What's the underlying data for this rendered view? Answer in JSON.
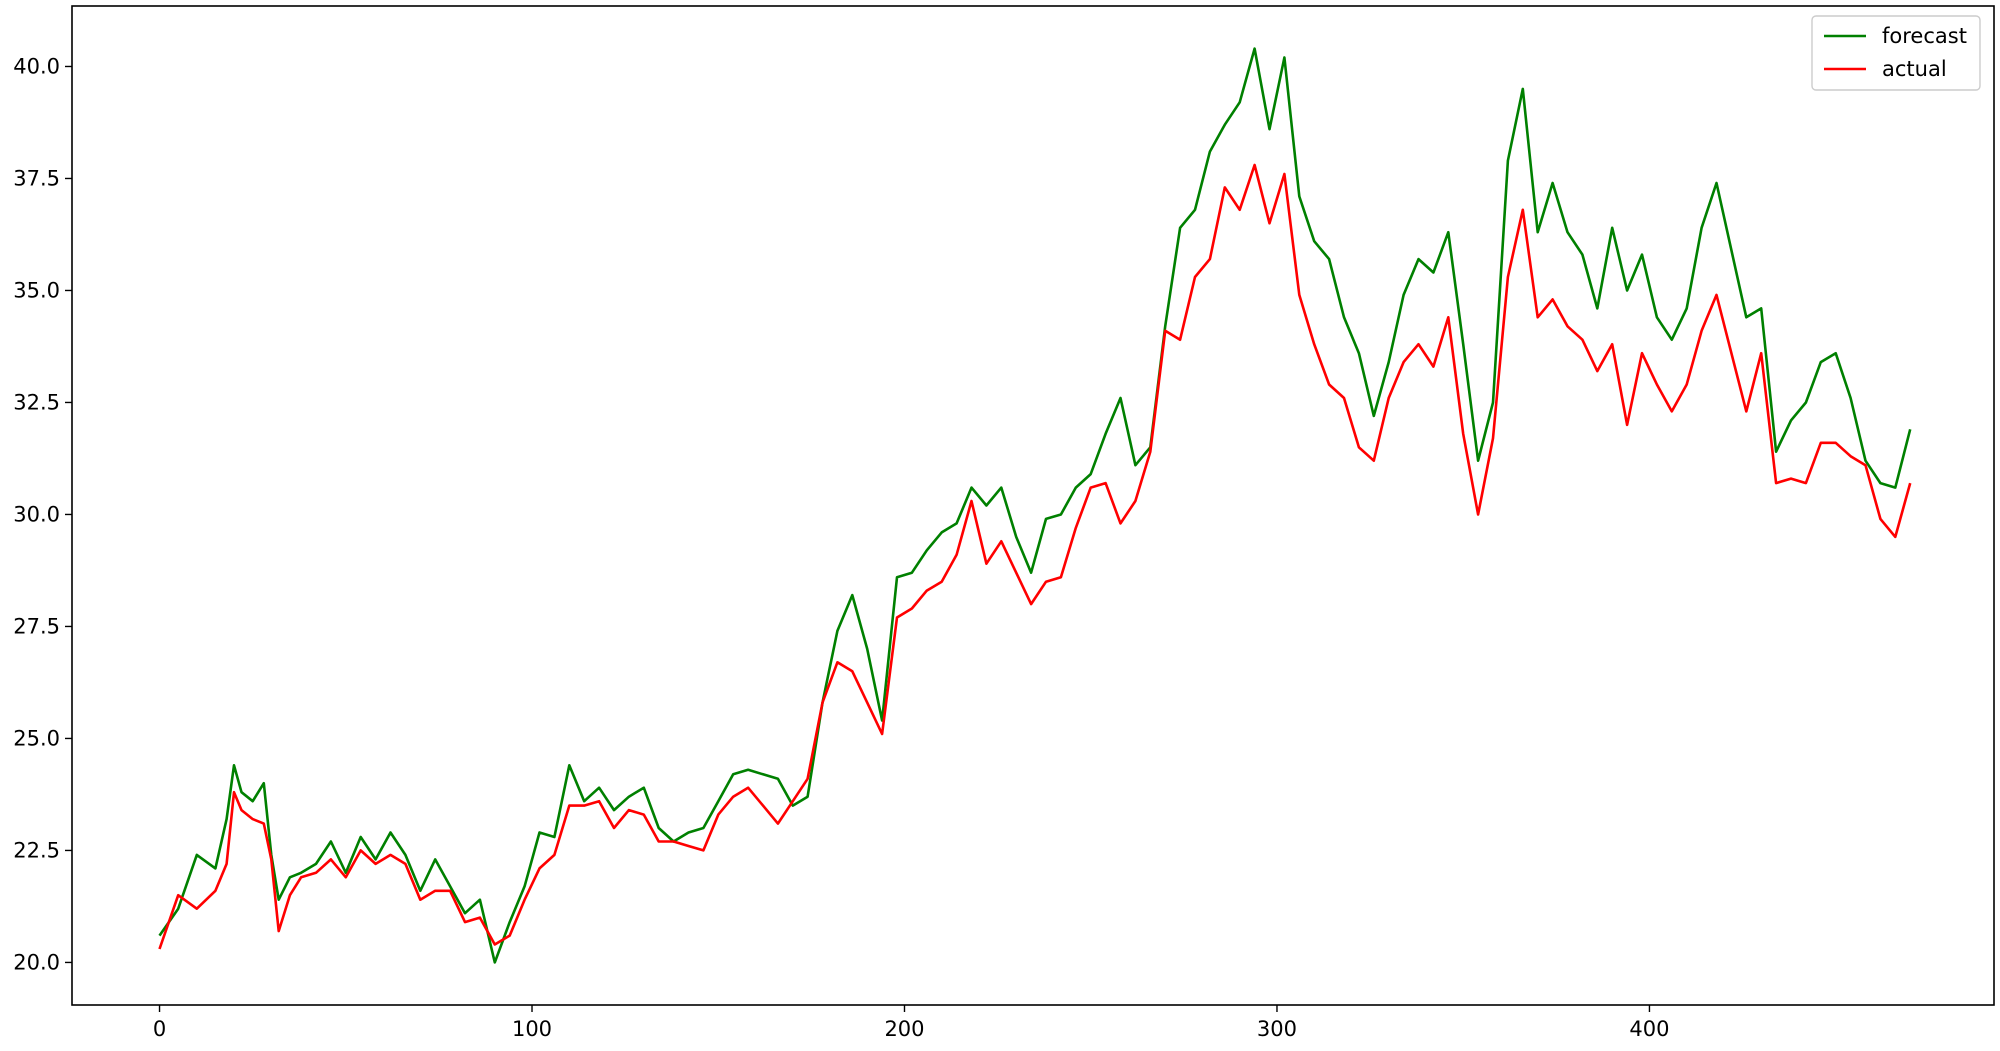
{
  "chart_data": {
    "type": "line",
    "title": "",
    "xlabel": "",
    "ylabel": "",
    "xlim": [
      -23.5,
      492.5
    ],
    "ylim": [
      19.05,
      41.35
    ],
    "grid": false,
    "legend_position": "top-right",
    "x_ticks": [
      0,
      100,
      200,
      300,
      400
    ],
    "x_tick_labels": [
      "0",
      "100",
      "200",
      "300",
      "400"
    ],
    "y_ticks": [
      20.0,
      22.5,
      25.0,
      27.5,
      30.0,
      32.5,
      35.0,
      37.5,
      40.0
    ],
    "y_tick_labels": [
      "20.0",
      "22.5",
      "25.0",
      "27.5",
      "30.0",
      "32.5",
      "35.0",
      "37.5",
      "40.0"
    ],
    "legend": [
      "forecast",
      "actual"
    ],
    "series": [
      {
        "name": "forecast",
        "color": "#008000",
        "x": [
          0,
          5,
          10,
          15,
          18,
          20,
          22,
          25,
          28,
          30,
          32,
          35,
          38,
          42,
          46,
          50,
          54,
          58,
          62,
          66,
          70,
          74,
          78,
          82,
          86,
          90,
          94,
          98,
          102,
          106,
          110,
          114,
          118,
          122,
          126,
          130,
          134,
          138,
          142,
          146,
          150,
          154,
          158,
          162,
          166,
          170,
          174,
          178,
          182,
          186,
          190,
          194,
          198,
          202,
          206,
          210,
          214,
          218,
          222,
          226,
          230,
          234,
          238,
          242,
          246,
          250,
          254,
          258,
          262,
          266,
          270,
          274,
          278,
          282,
          286,
          290,
          294,
          298,
          302,
          306,
          310,
          314,
          318,
          322,
          326,
          330,
          334,
          338,
          342,
          346,
          350,
          354,
          358,
          362,
          366,
          370,
          374,
          378,
          382,
          386,
          390,
          394,
          398,
          402,
          406,
          410,
          414,
          418,
          422,
          426,
          430,
          434,
          438,
          442,
          446,
          450,
          454,
          458,
          462,
          466,
          470
        ],
        "y": [
          20.6,
          21.2,
          22.4,
          22.1,
          23.2,
          24.4,
          23.8,
          23.6,
          24.0,
          22.4,
          21.4,
          21.9,
          22.0,
          22.2,
          22.7,
          22.0,
          22.8,
          22.3,
          22.9,
          22.4,
          21.6,
          22.3,
          21.7,
          21.1,
          21.4,
          20.0,
          20.9,
          21.7,
          22.9,
          22.8,
          24.4,
          23.6,
          23.9,
          23.4,
          23.7,
          23.9,
          23.0,
          22.7,
          22.9,
          23.0,
          23.6,
          24.2,
          24.3,
          24.2,
          24.1,
          23.5,
          23.7,
          25.8,
          27.4,
          28.2,
          27.0,
          25.4,
          28.6,
          28.7,
          29.2,
          29.6,
          29.8,
          30.6,
          30.2,
          30.6,
          29.5,
          28.7,
          29.9,
          30.0,
          30.6,
          30.9,
          31.8,
          32.6,
          31.1,
          31.5,
          34.2,
          36.4,
          36.8,
          38.1,
          38.7,
          39.2,
          40.4,
          38.6,
          40.2,
          37.1,
          36.1,
          35.7,
          34.4,
          33.6,
          32.2,
          33.4,
          34.9,
          35.7,
          35.4,
          36.3,
          33.8,
          31.2,
          32.5,
          37.9,
          39.5,
          36.3,
          37.4,
          36.3,
          35.8,
          34.6,
          36.4,
          35.0,
          35.8,
          34.4,
          33.9,
          34.6,
          36.4,
          37.4,
          35.9,
          34.4,
          34.6,
          31.4,
          32.1,
          32.5,
          33.4,
          33.6,
          32.6,
          31.2,
          30.7,
          30.6,
          31.9
        ]
      },
      {
        "name": "actual",
        "color": "#ff0000",
        "x": [
          0,
          5,
          10,
          15,
          18,
          20,
          22,
          25,
          28,
          30,
          32,
          35,
          38,
          42,
          46,
          50,
          54,
          58,
          62,
          66,
          70,
          74,
          78,
          82,
          86,
          90,
          94,
          98,
          102,
          106,
          110,
          114,
          118,
          122,
          126,
          130,
          134,
          138,
          142,
          146,
          150,
          154,
          158,
          162,
          166,
          170,
          174,
          178,
          182,
          186,
          190,
          194,
          198,
          202,
          206,
          210,
          214,
          218,
          222,
          226,
          230,
          234,
          238,
          242,
          246,
          250,
          254,
          258,
          262,
          266,
          270,
          274,
          278,
          282,
          286,
          290,
          294,
          298,
          302,
          306,
          310,
          314,
          318,
          322,
          326,
          330,
          334,
          338,
          342,
          346,
          350,
          354,
          358,
          362,
          366,
          370,
          374,
          378,
          382,
          386,
          390,
          394,
          398,
          402,
          406,
          410,
          414,
          418,
          422,
          426,
          430,
          434,
          438,
          442,
          446,
          450,
          454,
          458,
          462,
          466,
          470
        ],
        "y": [
          20.3,
          21.5,
          21.2,
          21.6,
          22.2,
          23.8,
          23.4,
          23.2,
          23.1,
          22.3,
          20.7,
          21.5,
          21.9,
          22.0,
          22.3,
          21.9,
          22.5,
          22.2,
          22.4,
          22.2,
          21.4,
          21.6,
          21.6,
          20.9,
          21.0,
          20.4,
          20.6,
          21.4,
          22.1,
          22.4,
          23.5,
          23.5,
          23.6,
          23.0,
          23.4,
          23.3,
          22.7,
          22.7,
          22.6,
          22.5,
          23.3,
          23.7,
          23.9,
          23.5,
          23.1,
          23.6,
          24.1,
          25.8,
          26.7,
          26.5,
          25.8,
          25.1,
          27.7,
          27.9,
          28.3,
          28.5,
          29.1,
          30.3,
          28.9,
          29.4,
          28.7,
          28.0,
          28.5,
          28.6,
          29.7,
          30.6,
          30.7,
          29.8,
          30.3,
          31.4,
          34.1,
          33.9,
          35.3,
          35.7,
          37.3,
          36.8,
          37.8,
          36.5,
          37.6,
          34.9,
          33.8,
          32.9,
          32.6,
          31.5,
          31.2,
          32.6,
          33.4,
          33.8,
          33.3,
          34.4,
          31.8,
          30.0,
          31.7,
          35.3,
          36.8,
          34.4,
          34.8,
          34.2,
          33.9,
          33.2,
          33.8,
          32.0,
          33.6,
          32.9,
          32.3,
          32.9,
          34.1,
          34.9,
          33.6,
          32.3,
          33.6,
          30.7,
          30.8,
          30.7,
          31.6,
          31.6,
          31.3,
          31.1,
          29.9,
          29.5,
          30.7
        ]
      }
    ]
  }
}
